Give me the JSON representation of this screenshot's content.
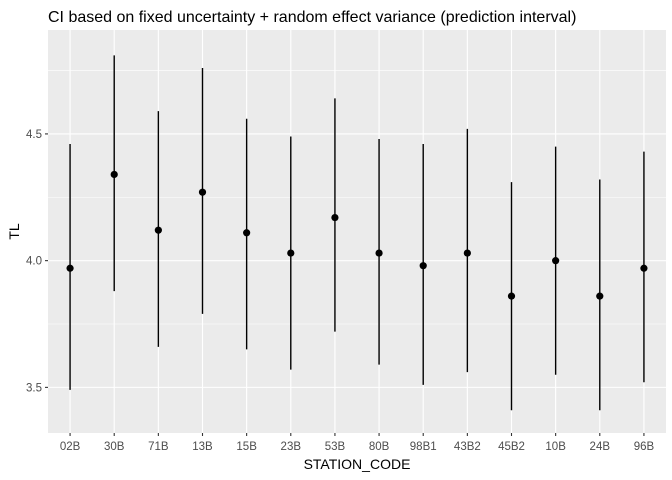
{
  "chart_data": {
    "type": "pointrange",
    "title": "CI based on fixed uncertainty + random effect variance (prediction interval)",
    "xlabel": "STATION_CODE",
    "ylabel": "TL",
    "categories": [
      "02B",
      "30B",
      "71B",
      "13B",
      "15B",
      "23B",
      "53B",
      "80B",
      "98B1",
      "43B2",
      "45B2",
      "10B",
      "24B",
      "96B"
    ],
    "estimate": [
      3.97,
      4.34,
      4.12,
      4.27,
      4.11,
      4.03,
      4.17,
      4.03,
      3.98,
      4.03,
      3.86,
      4.0,
      3.86,
      3.97
    ],
    "lower": [
      3.49,
      3.88,
      3.66,
      3.79,
      3.65,
      3.57,
      3.72,
      3.59,
      3.51,
      3.56,
      3.41,
      3.55,
      3.41,
      3.52
    ],
    "upper": [
      4.46,
      4.81,
      4.59,
      4.76,
      4.56,
      4.49,
      4.64,
      4.48,
      4.46,
      4.52,
      4.31,
      4.45,
      4.32,
      4.43
    ],
    "yticks": [
      3.5,
      4.0,
      4.5
    ],
    "ytick_labels": [
      "3.5",
      "4.0",
      "4.5"
    ],
    "ylim": [
      3.32,
      4.91
    ],
    "grid": true,
    "colors": {
      "panel": "#ebebeb",
      "grid": "#ffffff",
      "mark": "#000000",
      "tick_text": "#4d4d4d"
    }
  }
}
